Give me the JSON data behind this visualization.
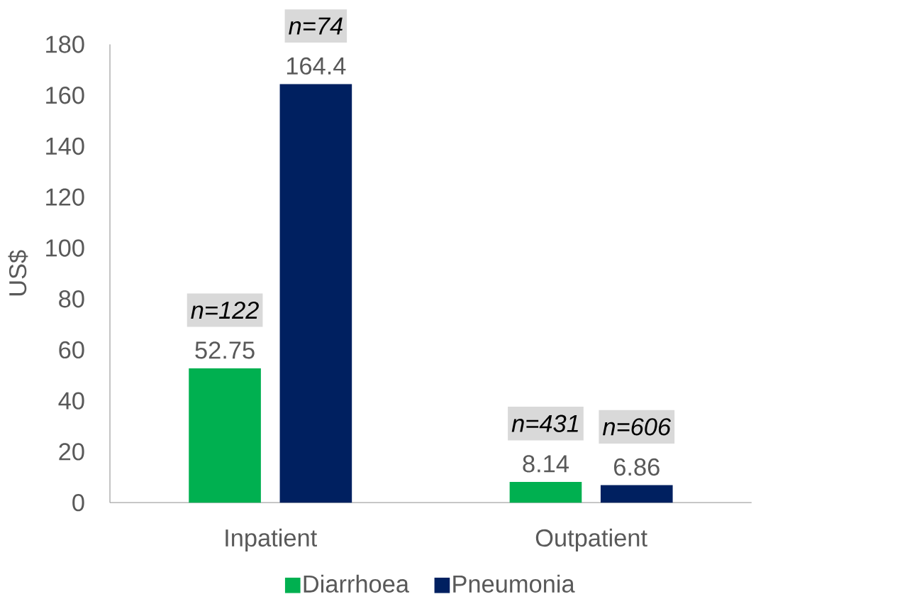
{
  "chart_data": {
    "type": "bar",
    "ylabel": "US$",
    "categories": [
      "Inpatient",
      "Outpatient"
    ],
    "series": [
      {
        "name": "Diarrhoea",
        "color": "#00b050",
        "values": [
          52.75,
          8.14
        ]
      },
      {
        "name": "Pneumonia",
        "color": "#002060",
        "values": [
          164.4,
          6.86
        ]
      }
    ],
    "ylim": [
      0,
      180
    ],
    "yticks": [
      0,
      20,
      40,
      60,
      80,
      100,
      120,
      140,
      160,
      180
    ],
    "data_labels": true,
    "grid": false,
    "legend": "bottom",
    "annotations": [
      "n=122",
      "n=431",
      "n=74",
      "n=606"
    ]
  }
}
